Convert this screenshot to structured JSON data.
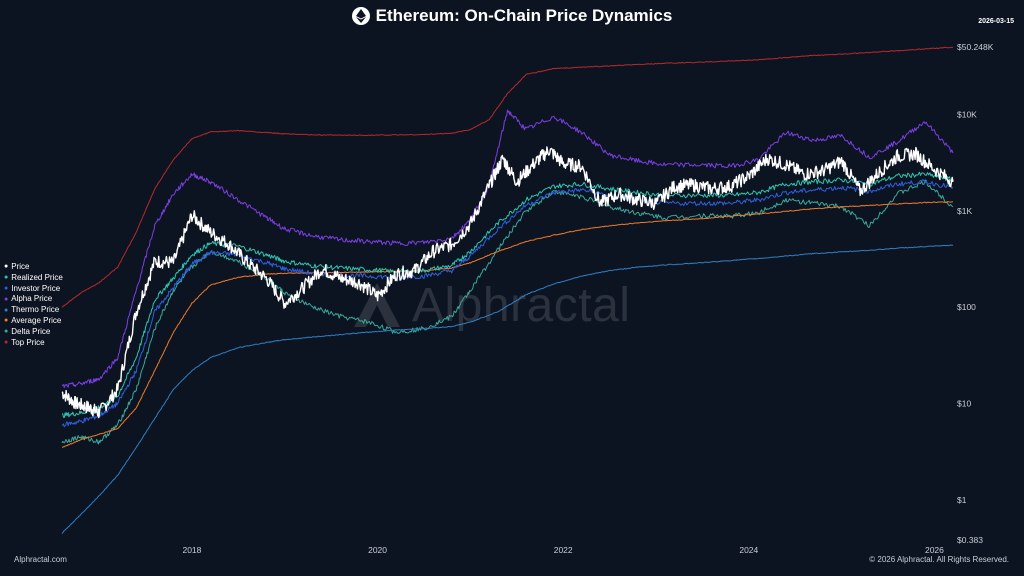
{
  "header": {
    "title": "Ethereum: On-Chain Price Dynamics",
    "date": "2026-03-15"
  },
  "footer": {
    "left": "Alphractal.com",
    "right": "© 2026 Alphractal. All Rights Reserved."
  },
  "watermark": {
    "text": "Alphractal"
  },
  "chart_data": {
    "type": "line",
    "y_scale": "log",
    "ylim": [
      0.383,
      50248
    ],
    "xlim": [
      2016.6,
      2026.2
    ],
    "y_ticks": [
      {
        "value": 50248,
        "label": "$50.248K"
      },
      {
        "value": 10000,
        "label": "$10K"
      },
      {
        "value": 1000,
        "label": "$1K"
      },
      {
        "value": 100,
        "label": "$100"
      },
      {
        "value": 10,
        "label": "$10"
      },
      {
        "value": 1,
        "label": "$1"
      },
      {
        "value": 0.383,
        "label": "$0.383"
      }
    ],
    "x_ticks": [
      {
        "value": 2018,
        "label": "2018"
      },
      {
        "value": 2020,
        "label": "2020"
      },
      {
        "value": 2022,
        "label": "2022"
      },
      {
        "value": 2024,
        "label": "2024"
      },
      {
        "value": 2026,
        "label": "2026"
      }
    ],
    "legend_position": "left",
    "series": [
      {
        "name": "Price",
        "color": "#ffffff",
        "width": 1.4,
        "x": [
          2016.6,
          2016.75,
          2016.9,
          2017.0,
          2017.2,
          2017.4,
          2017.6,
          2017.8,
          2018.0,
          2018.2,
          2018.4,
          2018.6,
          2018.8,
          2019.0,
          2019.2,
          2019.4,
          2019.6,
          2019.8,
          2020.0,
          2020.2,
          2020.4,
          2020.6,
          2020.8,
          2021.0,
          2021.2,
          2021.35,
          2021.5,
          2021.7,
          2021.85,
          2022.0,
          2022.2,
          2022.4,
          2022.6,
          2022.8,
          2023.0,
          2023.2,
          2023.4,
          2023.6,
          2023.8,
          2024.0,
          2024.2,
          2024.4,
          2024.6,
          2024.8,
          2025.0,
          2025.2,
          2025.4,
          2025.6,
          2025.8,
          2026.0,
          2026.2
        ],
        "values": [
          13,
          10,
          9,
          8,
          14,
          90,
          300,
          290,
          900,
          600,
          450,
          290,
          200,
          110,
          160,
          250,
          200,
          180,
          130,
          220,
          240,
          380,
          450,
          730,
          1800,
          3500,
          2000,
          3200,
          4300,
          3100,
          2900,
          1200,
          1500,
          1300,
          1200,
          1800,
          1850,
          1700,
          1800,
          2300,
          3500,
          3000,
          2400,
          2600,
          3300,
          1600,
          2500,
          3700,
          3900,
          2700,
          2000
        ]
      },
      {
        "name": "Realized Price",
        "color": "#2ec5b2",
        "width": 1.0,
        "x": [
          2016.6,
          2016.8,
          2017.0,
          2017.2,
          2017.4,
          2017.6,
          2017.8,
          2018.0,
          2018.2,
          2018.5,
          2018.8,
          2019.0,
          2019.3,
          2019.6,
          2019.9,
          2020.2,
          2020.5,
          2020.8,
          2021.0,
          2021.3,
          2021.6,
          2021.9,
          2022.2,
          2022.5,
          2022.8,
          2023.1,
          2023.5,
          2023.8,
          2024.1,
          2024.4,
          2024.7,
          2025.0,
          2025.3,
          2025.6,
          2025.9,
          2026.2
        ],
        "values": [
          7.5,
          8,
          9,
          12,
          30,
          120,
          200,
          350,
          460,
          430,
          350,
          300,
          270,
          255,
          245,
          235,
          240,
          270,
          380,
          750,
          1300,
          1800,
          1900,
          1700,
          1550,
          1450,
          1450,
          1450,
          1550,
          1900,
          2000,
          2100,
          1900,
          2300,
          2400,
          2100
        ]
      },
      {
        "name": "Investor Price",
        "color": "#2f5fe0",
        "width": 1.0,
        "x": [
          2016.6,
          2016.8,
          2017.0,
          2017.2,
          2017.4,
          2017.6,
          2017.8,
          2018.0,
          2018.2,
          2018.5,
          2018.8,
          2019.0,
          2019.3,
          2019.6,
          2019.9,
          2020.2,
          2020.5,
          2020.8,
          2021.0,
          2021.3,
          2021.6,
          2021.9,
          2022.2,
          2022.5,
          2022.8,
          2023.1,
          2023.5,
          2023.8,
          2024.1,
          2024.4,
          2024.7,
          2025.0,
          2025.3,
          2025.6,
          2025.9,
          2026.2
        ],
        "values": [
          6,
          6.5,
          7.5,
          10,
          22,
          90,
          160,
          280,
          370,
          350,
          290,
          250,
          225,
          215,
          210,
          205,
          210,
          240,
          340,
          650,
          1150,
          1550,
          1650,
          1450,
          1300,
          1200,
          1200,
          1200,
          1300,
          1550,
          1650,
          1750,
          1600,
          1900,
          2000,
          1750
        ]
      },
      {
        "name": "Alpha Price",
        "color": "#7b3fe4",
        "width": 1.0,
        "x": [
          2016.6,
          2016.8,
          2017.0,
          2017.2,
          2017.4,
          2017.6,
          2017.8,
          2018.0,
          2018.2,
          2018.5,
          2018.8,
          2019.0,
          2019.3,
          2019.6,
          2019.9,
          2020.2,
          2020.5,
          2020.8,
          2021.0,
          2021.2,
          2021.4,
          2021.6,
          2021.9,
          2022.2,
          2022.5,
          2022.8,
          2023.1,
          2023.5,
          2023.8,
          2024.1,
          2024.4,
          2024.7,
          2025.0,
          2025.3,
          2025.6,
          2025.9,
          2026.2
        ],
        "values": [
          15,
          16,
          18,
          30,
          150,
          700,
          1500,
          2400,
          2000,
          1300,
          850,
          650,
          550,
          500,
          480,
          460,
          470,
          520,
          800,
          1800,
          11000,
          7000,
          9500,
          6500,
          3800,
          3300,
          3000,
          3000,
          2900,
          3400,
          6500,
          5400,
          6000,
          3600,
          5200,
          8500,
          4000
        ]
      },
      {
        "name": "Thermo Price",
        "color": "#2f7fc4",
        "width": 1.0,
        "x": [
          2016.6,
          2016.8,
          2017.0,
          2017.2,
          2017.4,
          2017.6,
          2017.8,
          2018.0,
          2018.2,
          2018.5,
          2018.8,
          2019.0,
          2019.3,
          2019.6,
          2019.9,
          2020.2,
          2020.5,
          2020.8,
          2021.0,
          2021.3,
          2021.6,
          2021.9,
          2022.2,
          2022.5,
          2022.8,
          2023.1,
          2023.5,
          2023.8,
          2024.1,
          2024.4,
          2024.7,
          2025.0,
          2025.3,
          2025.6,
          2025.9,
          2026.2
        ],
        "values": [
          0.45,
          0.7,
          1.1,
          1.8,
          3.5,
          7,
          14,
          22,
          30,
          38,
          43,
          46,
          49,
          52,
          55,
          58,
          60,
          63,
          70,
          90,
          135,
          175,
          210,
          240,
          260,
          275,
          290,
          305,
          320,
          340,
          360,
          375,
          390,
          410,
          425,
          440
        ]
      },
      {
        "name": "Average Price",
        "color": "#f07a2a",
        "width": 1.0,
        "x": [
          2016.6,
          2016.8,
          2017.0,
          2017.2,
          2017.4,
          2017.6,
          2017.8,
          2018.0,
          2018.2,
          2018.5,
          2018.8,
          2019.0,
          2019.3,
          2019.6,
          2019.9,
          2020.2,
          2020.5,
          2020.8,
          2021.0,
          2021.3,
          2021.6,
          2021.9,
          2022.2,
          2022.5,
          2022.8,
          2023.1,
          2023.5,
          2023.8,
          2024.1,
          2024.4,
          2024.7,
          2025.0,
          2025.3,
          2025.6,
          2025.9,
          2026.2
        ],
        "values": [
          3.5,
          4.2,
          4.8,
          5.5,
          9,
          22,
          55,
          110,
          170,
          205,
          220,
          225,
          228,
          230,
          232,
          235,
          240,
          255,
          290,
          380,
          480,
          560,
          640,
          700,
          750,
          790,
          830,
          880,
          930,
          990,
          1050,
          1100,
          1140,
          1180,
          1220,
          1240
        ]
      },
      {
        "name": "Delta Price",
        "color": "#3aa89a",
        "width": 1.0,
        "x": [
          2016.6,
          2016.8,
          2017.0,
          2017.2,
          2017.4,
          2017.6,
          2017.8,
          2018.0,
          2018.2,
          2018.5,
          2018.8,
          2019.0,
          2019.3,
          2019.6,
          2019.9,
          2020.2,
          2020.5,
          2020.8,
          2021.0,
          2021.3,
          2021.6,
          2021.9,
          2022.2,
          2022.5,
          2022.8,
          2023.1,
          2023.5,
          2023.8,
          2024.1,
          2024.4,
          2024.7,
          2025.0,
          2025.3,
          2025.6,
          2025.9,
          2026.2
        ],
        "values": [
          4,
          4.5,
          4,
          6,
          14,
          60,
          150,
          260,
          380,
          300,
          200,
          140,
          100,
          80,
          70,
          55,
          60,
          80,
          150,
          400,
          1000,
          1600,
          1400,
          1100,
          950,
          850,
          900,
          880,
          950,
          1300,
          1200,
          1100,
          700,
          1500,
          2000,
          1100
        ]
      },
      {
        "name": "Top Price",
        "color": "#b52a2a",
        "width": 1.0,
        "x": [
          2016.6,
          2016.8,
          2017.0,
          2017.2,
          2017.4,
          2017.6,
          2017.8,
          2018.0,
          2018.2,
          2018.5,
          2018.8,
          2019.0,
          2019.3,
          2019.6,
          2019.9,
          2020.2,
          2020.5,
          2020.8,
          2021.0,
          2021.2,
          2021.4,
          2021.6,
          2021.9,
          2022.2,
          2022.5,
          2022.8,
          2023.1,
          2023.5,
          2023.8,
          2024.1,
          2024.4,
          2024.7,
          2025.0,
          2025.3,
          2025.6,
          2025.9,
          2026.2
        ],
        "values": [
          100,
          140,
          180,
          260,
          600,
          1700,
          3400,
          5600,
          6600,
          6800,
          6500,
          6300,
          6150,
          6100,
          6100,
          6150,
          6200,
          6400,
          7000,
          8800,
          16500,
          26000,
          30000,
          31000,
          32000,
          33000,
          34000,
          35000,
          36000,
          37000,
          39000,
          41000,
          42500,
          44000,
          46000,
          48000,
          50000
        ]
      }
    ]
  }
}
